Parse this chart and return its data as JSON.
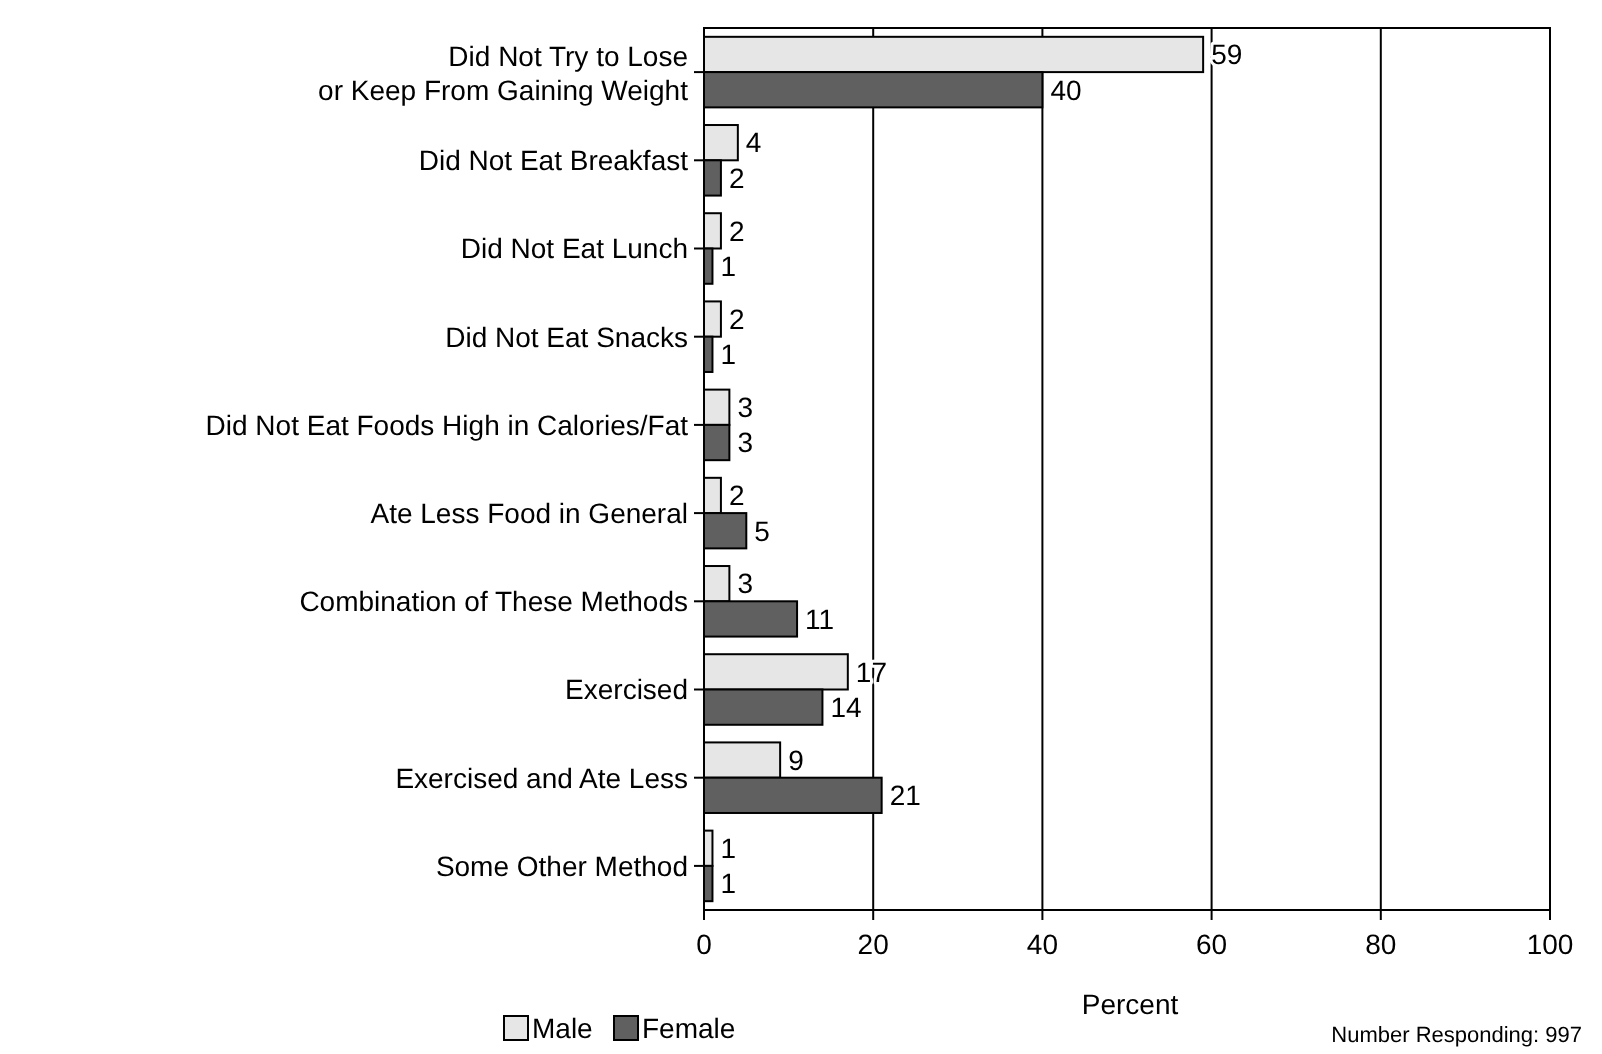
{
  "chart_data": {
    "type": "bar",
    "orientation": "horizontal",
    "xlabel": "Percent",
    "categories": [
      "Did Not Try to Lose\nor Keep From Gaining Weight",
      "Did Not Eat Breakfast",
      "Did Not Eat Lunch",
      "Did Not Eat Snacks",
      "Did Not Eat Foods High in Calories/Fat",
      "Ate Less Food in General",
      "Combination of These Methods",
      "Exercised",
      "Exercised and Ate Less",
      "Some Other Method"
    ],
    "series": [
      {
        "name": "Male",
        "color": "#e6e6e6",
        "values": [
          59,
          4,
          2,
          2,
          3,
          2,
          3,
          17,
          9,
          1
        ]
      },
      {
        "name": "Female",
        "color": "#606060",
        "values": [
          40,
          2,
          1,
          1,
          3,
          5,
          11,
          14,
          21,
          1
        ]
      }
    ],
    "xlim": [
      0,
      100
    ],
    "xticks": [
      0,
      20,
      40,
      60,
      80,
      100
    ],
    "grid": "x",
    "legend": "bottom",
    "data_labels": true,
    "annotations": [
      "Number Responding:  997"
    ]
  }
}
